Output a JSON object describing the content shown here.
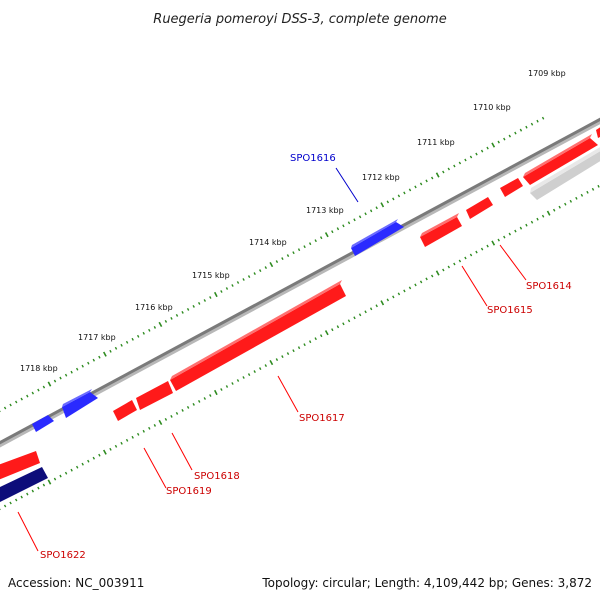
{
  "title": "Ruegeria pomeroyi DSS-3, complete genome",
  "footer": {
    "accession": "Accession: NC_003911",
    "summary": "Topology: circular; Length: 4,109,442 bp; Genes: 3,872"
  },
  "kbp_labels": [
    "1709 kbp",
    "1710 kbp",
    "1711 kbp",
    "1712 kbp",
    "1713 kbp",
    "1714 kbp",
    "1715 kbp",
    "1716 kbp",
    "1717 kbp",
    "1718 kbp"
  ],
  "genes": [
    {
      "label": "SPO1614",
      "strand": "reverse",
      "color": "#ff0000"
    },
    {
      "label": "SPO1615",
      "strand": "reverse",
      "color": "#ff0000"
    },
    {
      "label": "SPO1616",
      "strand": "forward",
      "color": "#0000ff"
    },
    {
      "label": "SPO1617",
      "strand": "reverse",
      "color": "#ff0000"
    },
    {
      "label": "SPO1618",
      "strand": "reverse",
      "color": "#ff0000"
    },
    {
      "label": "SPO1619",
      "strand": "reverse",
      "color": "#ff0000"
    },
    {
      "label": "SPO1622",
      "strand": "reverse",
      "color": "#ff0000"
    }
  ],
  "colors": {
    "forward": "#0000ff",
    "reverse": "#ff0000",
    "dark_gene": "#000080",
    "grey_gene": "#bdbdbd",
    "backbone": "#8a8a8a",
    "ticks": "#2e8b20"
  }
}
